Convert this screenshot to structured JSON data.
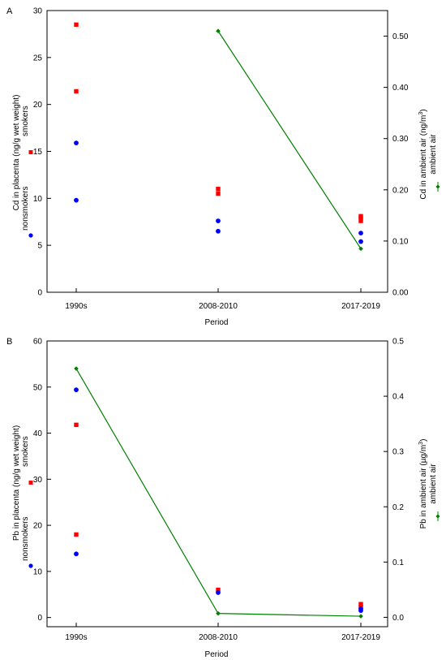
{
  "chart_data": [
    {
      "panel_label": "A",
      "type": "scatter",
      "categories": [
        "1990s",
        "2008-2010",
        "2017-2019"
      ],
      "xlabel": "Period",
      "ylabel_left": "Cd in placenta (ng/g wet weight)",
      "ylabel_right_prefix": "Cd in ambient air (ng/m",
      "ylabel_right_sup": "3",
      "ylabel_right_suffix": ")",
      "ylim_left": [
        0,
        30
      ],
      "yticks_left": [
        0,
        5,
        10,
        15,
        20,
        25,
        30
      ],
      "ylim_right": [
        0,
        0.55
      ],
      "yticks_right": [
        "0.00",
        "0.10",
        "0.20",
        "0.30",
        "0.40",
        "0.50"
      ],
      "legend": {
        "smokers": "smokers",
        "nonsmokers": "nonsmokers",
        "ambient": "ambient air"
      },
      "colors": {
        "smokers": "#ff0000",
        "nonsmokers": "#0000ff",
        "ambient": "#008000"
      },
      "series": [
        {
          "name": "smokers",
          "axis": "left",
          "marker": "square",
          "points": [
            [
              0,
              28.5
            ],
            [
              0,
              21.4
            ],
            [
              1,
              11.0
            ],
            [
              1,
              10.5
            ],
            [
              2,
              8.1
            ],
            [
              2,
              7.9
            ],
            [
              2,
              7.6
            ]
          ]
        },
        {
          "name": "nonsmokers",
          "axis": "left",
          "marker": "circle",
          "points": [
            [
              0,
              15.9
            ],
            [
              0,
              9.8
            ],
            [
              1,
              7.6
            ],
            [
              1,
              6.5
            ],
            [
              2,
              6.3
            ],
            [
              2,
              5.4
            ]
          ]
        },
        {
          "name": "ambient air",
          "axis": "right",
          "marker": "diamond-line",
          "points": [
            [
              1,
              0.51
            ],
            [
              2,
              0.085
            ]
          ]
        }
      ]
    },
    {
      "panel_label": "B",
      "type": "scatter",
      "categories": [
        "1990s",
        "2008-2010",
        "2017-2019"
      ],
      "xlabel": "Period",
      "ylabel_left": "Pb in placenta (ng/g wet weight)",
      "ylabel_right_prefix": "Pb in ambient air (µg/m",
      "ylabel_right_sup": "3",
      "ylabel_right_suffix": ")",
      "ylim_left": [
        -2,
        60
      ],
      "yticks_left": [
        0,
        10,
        20,
        30,
        40,
        50,
        60
      ],
      "ylim_right": [
        -0.017,
        0.5
      ],
      "yticks_right": [
        "0.0",
        "0.1",
        "0.2",
        "0.3",
        "0.4",
        "0.5"
      ],
      "legend": {
        "smokers": "smokers",
        "nonsmokers": "nonsmokers",
        "ambient": "ambient air"
      },
      "colors": {
        "smokers": "#ff0000",
        "nonsmokers": "#0000ff",
        "ambient": "#008000"
      },
      "series": [
        {
          "name": "smokers",
          "axis": "left",
          "marker": "square",
          "points": [
            [
              0,
              41.8
            ],
            [
              0,
              18.0
            ],
            [
              1,
              6.0
            ],
            [
              2,
              2.9
            ],
            [
              2,
              2.3
            ]
          ]
        },
        {
          "name": "nonsmokers",
          "axis": "left",
          "marker": "circle",
          "points": [
            [
              0,
              49.4
            ],
            [
              0,
              13.8
            ],
            [
              1,
              5.4
            ],
            [
              2,
              1.9
            ],
            [
              2,
              1.5
            ]
          ]
        },
        {
          "name": "ambient air",
          "axis": "right",
          "marker": "diamond-line",
          "points": [
            [
              0,
              0.45
            ],
            [
              1,
              0.007
            ],
            [
              2,
              0.002
            ]
          ]
        }
      ]
    }
  ]
}
